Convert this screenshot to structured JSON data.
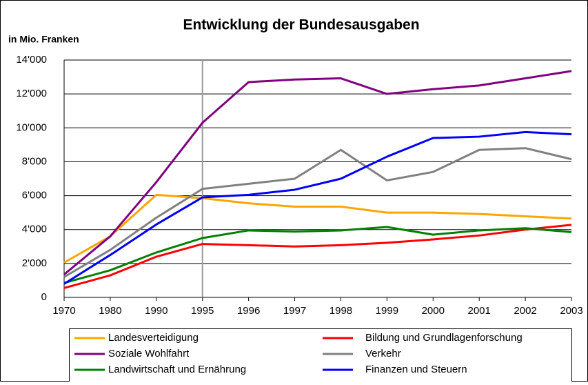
{
  "chart_data": {
    "type": "line",
    "title": "Entwicklung der Bundesausgaben",
    "y_label": "in Mio. Franken",
    "categories": [
      "1970",
      "1980",
      "1990",
      "1995",
      "1996",
      "1997",
      "1998",
      "1999",
      "2000",
      "2001",
      "2002",
      "2003"
    ],
    "ylim": [
      0,
      14000
    ],
    "yticks": [
      0,
      {
        "value": 2000,
        "label": "2'000"
      },
      {
        "value": 4000,
        "label": "4'000"
      },
      {
        "value": 6000,
        "label": "6'000"
      },
      {
        "value": 8000,
        "label": "8'000"
      },
      {
        "value": 10000,
        "label": "10'000"
      },
      {
        "value": 12000,
        "label": "12'000"
      },
      {
        "value": 14000,
        "label": "14'000"
      }
    ],
    "grid": true,
    "series": [
      {
        "name": "Landesverteidigung",
        "color": "#ffa500",
        "values": [
          2050,
          3600,
          6050,
          5850,
          5550,
          5350,
          5350,
          5000,
          5000,
          4920,
          4780,
          4650
        ]
      },
      {
        "name": "Bildung und Grundlagenforschung",
        "color": "#ff0000",
        "values": [
          550,
          1300,
          2400,
          3150,
          3080,
          3000,
          3080,
          3220,
          3420,
          3650,
          4000,
          4280
        ]
      },
      {
        "name": "Soziale Wohlfahrt",
        "color": "#800080",
        "values": [
          1350,
          3600,
          6800,
          10300,
          12700,
          12850,
          12920,
          12000,
          12280,
          12500,
          12920,
          13350
        ]
      },
      {
        "name": "Verkehr",
        "color": "#808080",
        "values": [
          1200,
          2800,
          4700,
          6400,
          6700,
          7000,
          8700,
          6900,
          7400,
          8700,
          8800,
          8150
        ]
      },
      {
        "name": "Landwirtschaft und Ernährung",
        "color": "#008000",
        "values": [
          850,
          1600,
          2650,
          3500,
          3950,
          3880,
          3950,
          4150,
          3700,
          3950,
          4080,
          3850
        ]
      },
      {
        "name": "Finanzen und Steuern",
        "color": "#0000ff",
        "values": [
          800,
          2500,
          4300,
          5900,
          6050,
          6350,
          7000,
          8300,
          9400,
          9480,
          9750,
          9620
        ]
      }
    ]
  }
}
